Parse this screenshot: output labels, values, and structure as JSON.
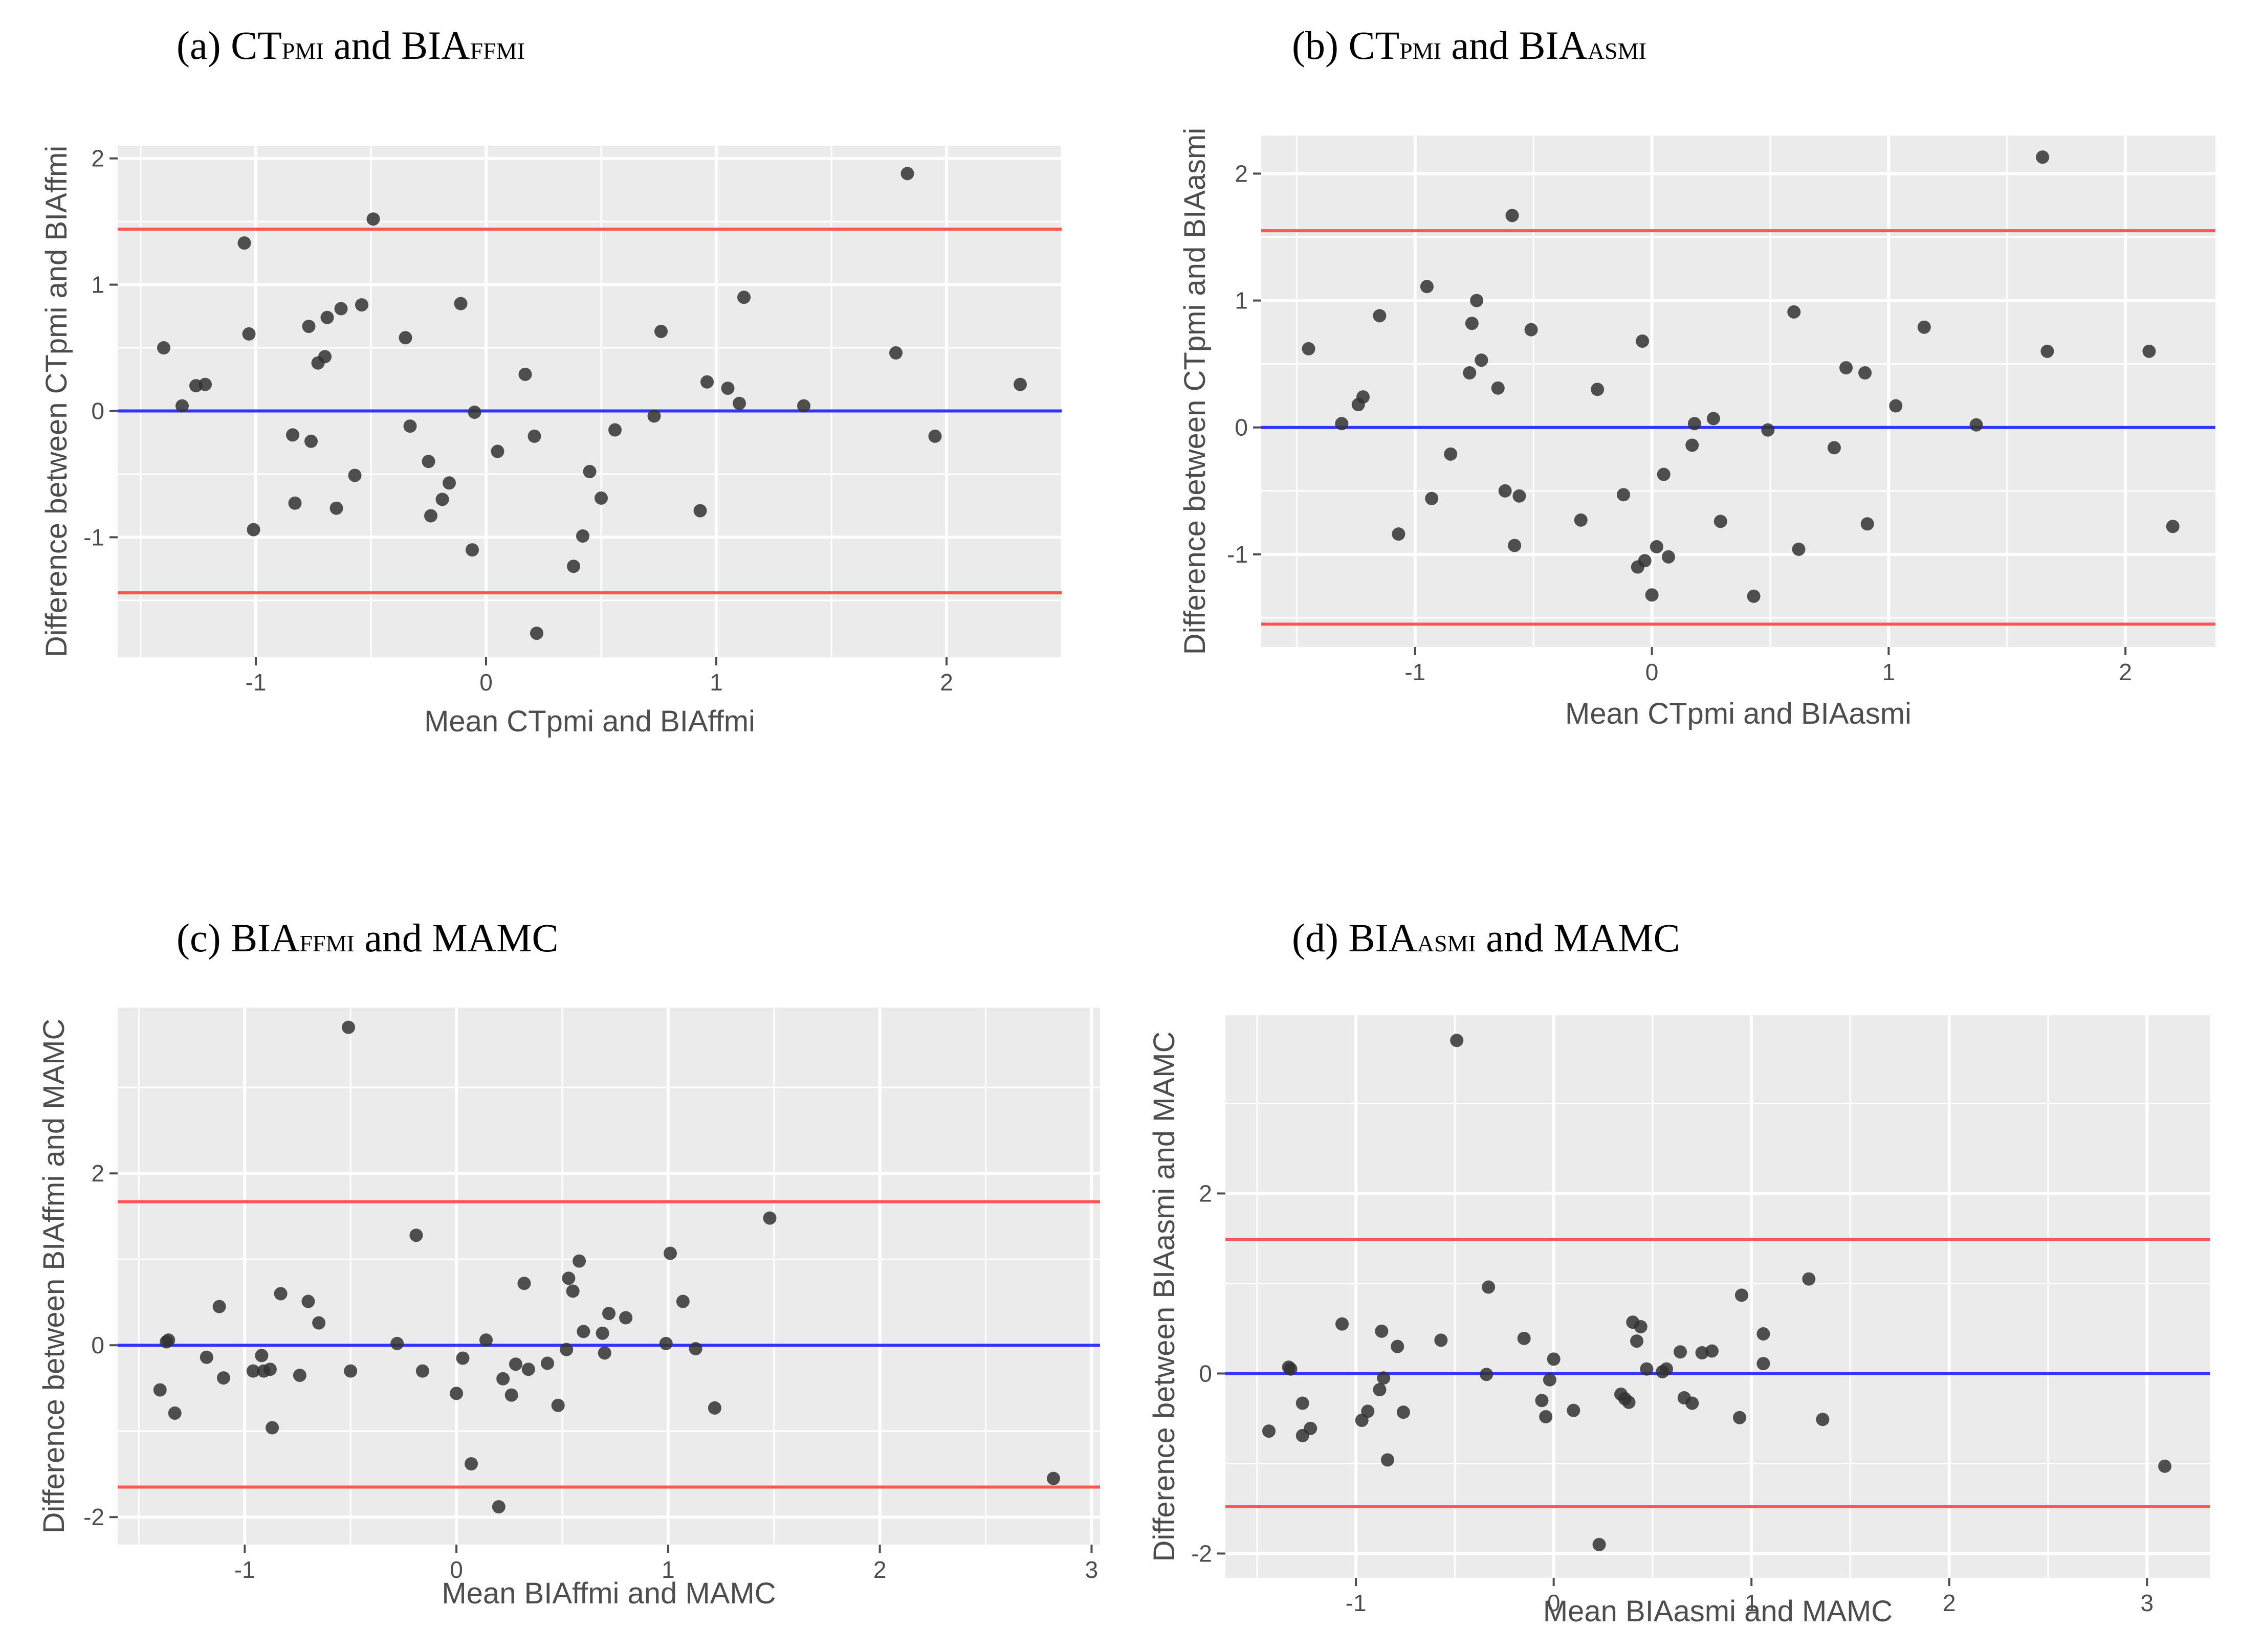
{
  "figure": {
    "panels": [
      {
        "title_prefix": "(a) ",
        "title_parts": [
          [
            "CT",
            false
          ],
          [
            "PMI",
            true
          ],
          [
            " and BIA",
            false
          ],
          [
            "FFMI",
            true
          ]
        ]
      },
      {
        "title_prefix": "(b) ",
        "title_parts": [
          [
            "CT",
            false
          ],
          [
            "PMI",
            true
          ],
          [
            " and BIA",
            false
          ],
          [
            "ASMI",
            true
          ]
        ]
      },
      {
        "title_prefix": "(c) ",
        "title_parts": [
          [
            "BIA",
            false
          ],
          [
            "FFMI",
            true
          ],
          [
            " and MAMC",
            false
          ]
        ]
      },
      {
        "title_prefix": "(d) ",
        "title_parts": [
          [
            "BIA",
            false
          ],
          [
            "ASMI",
            true
          ],
          [
            " and MAMC",
            false
          ]
        ]
      }
    ]
  },
  "colors": {
    "panel_bg": "#ebebeb",
    "grid": "#ffffff",
    "point": "#333333",
    "mean_line": "#3333ff",
    "limit_line": "#ff5555",
    "text": "#4d4d4d",
    "title": "#000000"
  },
  "chart_data": [
    {
      "type": "scatter",
      "title": "(a) CTpmi and BIAffmi",
      "xlabel": "Mean CTpmi and BIAffmi",
      "ylabel": "Difference between CTpmi and BIAffmi",
      "xlim": [
        -1.6,
        2.5
      ],
      "ylim": [
        -1.95,
        2.1
      ],
      "xticks": [
        -1,
        0,
        1,
        2
      ],
      "yticks": [
        -1,
        0,
        1,
        2
      ],
      "mean_diff": 0.0,
      "limits_of_agreement": [
        -1.44,
        1.44
      ],
      "points": [
        [
          -1.4,
          0.5
        ],
        [
          -1.32,
          0.04
        ],
        [
          -1.26,
          0.2
        ],
        [
          -1.22,
          0.21
        ],
        [
          -1.05,
          1.33
        ],
        [
          -1.03,
          0.61
        ],
        [
          -1.01,
          -0.94
        ],
        [
          -0.84,
          -0.19
        ],
        [
          -0.83,
          -0.73
        ],
        [
          -0.77,
          0.67
        ],
        [
          -0.76,
          -0.24
        ],
        [
          -0.73,
          0.38
        ],
        [
          -0.7,
          0.43
        ],
        [
          -0.69,
          0.74
        ],
        [
          -0.65,
          -0.77
        ],
        [
          -0.63,
          0.81
        ],
        [
          -0.57,
          -0.51
        ],
        [
          -0.54,
          0.84
        ],
        [
          -0.49,
          1.52
        ],
        [
          -0.35,
          0.58
        ],
        [
          -0.33,
          -0.12
        ],
        [
          -0.25,
          -0.4
        ],
        [
          -0.24,
          -0.83
        ],
        [
          -0.19,
          -0.7
        ],
        [
          -0.16,
          -0.57
        ],
        [
          -0.11,
          0.85
        ],
        [
          -0.06,
          -1.1
        ],
        [
          -0.05,
          -0.01
        ],
        [
          0.05,
          -0.32
        ],
        [
          0.17,
          0.29
        ],
        [
          0.21,
          -0.2
        ],
        [
          0.22,
          -1.76
        ],
        [
          0.38,
          -1.23
        ],
        [
          0.42,
          -0.99
        ],
        [
          0.45,
          -0.48
        ],
        [
          0.5,
          -0.69
        ],
        [
          0.56,
          -0.15
        ],
        [
          0.73,
          -0.04
        ],
        [
          0.76,
          0.63
        ],
        [
          0.93,
          -0.79
        ],
        [
          0.96,
          0.23
        ],
        [
          1.05,
          0.18
        ],
        [
          1.1,
          0.06
        ],
        [
          1.12,
          0.9
        ],
        [
          1.38,
          0.04
        ],
        [
          1.78,
          0.46
        ],
        [
          1.83,
          1.88
        ],
        [
          1.95,
          -0.2
        ],
        [
          2.32,
          0.21
        ]
      ]
    },
    {
      "type": "scatter",
      "title": "(b) CTpmi and BIAasmi",
      "xlabel": "Mean CTpmi and BIAasmi",
      "ylabel": "Difference between CTpmi and BIAasmi",
      "xlim": [
        -1.65,
        2.38
      ],
      "ylim": [
        -1.73,
        2.3
      ],
      "xticks": [
        -1,
        0,
        1,
        2
      ],
      "yticks": [
        -1,
        0,
        1,
        2
      ],
      "mean_diff": 0.0,
      "limits_of_agreement": [
        -1.55,
        1.55
      ],
      "points": [
        [
          -1.45,
          0.62
        ],
        [
          -1.31,
          0.03
        ],
        [
          -1.24,
          0.18
        ],
        [
          -1.22,
          0.24
        ],
        [
          -1.15,
          0.88
        ],
        [
          -1.07,
          -0.84
        ],
        [
          -0.95,
          1.11
        ],
        [
          -0.93,
          -0.56
        ],
        [
          -0.85,
          -0.21
        ],
        [
          -0.77,
          0.43
        ],
        [
          -0.76,
          0.82
        ],
        [
          -0.74,
          1.0
        ],
        [
          -0.72,
          0.53
        ],
        [
          -0.65,
          0.31
        ],
        [
          -0.62,
          -0.5
        ],
        [
          -0.59,
          1.67
        ],
        [
          -0.58,
          -0.93
        ],
        [
          -0.56,
          -0.54
        ],
        [
          -0.51,
          0.77
        ],
        [
          -0.3,
          -0.73
        ],
        [
          -0.23,
          0.3
        ],
        [
          -0.12,
          -0.53
        ],
        [
          -0.06,
          -1.1
        ],
        [
          -0.03,
          -1.05
        ],
        [
          -0.04,
          0.68
        ],
        [
          0.0,
          -1.32
        ],
        [
          0.02,
          -0.94
        ],
        [
          0.05,
          -0.37
        ],
        [
          0.07,
          -1.02
        ],
        [
          0.17,
          -0.14
        ],
        [
          0.18,
          0.03
        ],
        [
          0.26,
          0.07
        ],
        [
          0.29,
          -0.74
        ],
        [
          0.43,
          -1.33
        ],
        [
          0.49,
          -0.02
        ],
        [
          0.6,
          0.91
        ],
        [
          0.62,
          -0.96
        ],
        [
          0.77,
          -0.16
        ],
        [
          0.82,
          0.47
        ],
        [
          0.9,
          0.43
        ],
        [
          0.91,
          -0.76
        ],
        [
          1.03,
          0.17
        ],
        [
          1.15,
          0.79
        ],
        [
          1.37,
          0.02
        ],
        [
          1.65,
          2.13
        ],
        [
          1.67,
          0.6
        ],
        [
          2.1,
          0.6
        ],
        [
          2.2,
          -0.78
        ]
      ]
    },
    {
      "type": "scatter",
      "title": "(c) BIAffmi and MAMC",
      "xlabel": "Mean BIAffmi and MAMC",
      "ylabel": "Difference between BIAffmi and MAMC",
      "xlim": [
        -1.6,
        3.04
      ],
      "ylim": [
        -2.32,
        3.93
      ],
      "xticks": [
        -1,
        0,
        1,
        2,
        3
      ],
      "yticks": [
        -2,
        0,
        2
      ],
      "mean_diff": 0.0,
      "limits_of_agreement": [
        -1.65,
        1.67
      ],
      "points": [
        [
          -1.4,
          -0.52
        ],
        [
          -1.37,
          0.04
        ],
        [
          -1.36,
          0.06
        ],
        [
          -1.33,
          -0.79
        ],
        [
          -1.18,
          -0.14
        ],
        [
          -1.12,
          0.45
        ],
        [
          -1.1,
          -0.38
        ],
        [
          -0.96,
          -0.3
        ],
        [
          -0.92,
          -0.12
        ],
        [
          -0.91,
          -0.3
        ],
        [
          -0.88,
          -0.28
        ],
        [
          -0.87,
          -0.96
        ],
        [
          -0.83,
          0.6
        ],
        [
          -0.74,
          -0.35
        ],
        [
          -0.7,
          0.51
        ],
        [
          -0.65,
          0.26
        ],
        [
          -0.51,
          3.7
        ],
        [
          -0.5,
          -0.3
        ],
        [
          -0.28,
          0.02
        ],
        [
          -0.19,
          1.28
        ],
        [
          -0.16,
          -0.3
        ],
        [
          0.0,
          -0.56
        ],
        [
          0.03,
          -0.15
        ],
        [
          0.07,
          -1.38
        ],
        [
          0.14,
          0.06
        ],
        [
          0.2,
          -1.88
        ],
        [
          0.22,
          -0.39
        ],
        [
          0.26,
          -0.58
        ],
        [
          0.28,
          -0.22
        ],
        [
          0.32,
          0.72
        ],
        [
          0.34,
          -0.28
        ],
        [
          0.43,
          -0.21
        ],
        [
          0.48,
          -0.7
        ],
        [
          0.52,
          -0.05
        ],
        [
          0.53,
          0.78
        ],
        [
          0.55,
          0.63
        ],
        [
          0.58,
          0.98
        ],
        [
          0.6,
          0.16
        ],
        [
          0.69,
          0.14
        ],
        [
          0.7,
          -0.09
        ],
        [
          0.72,
          0.37
        ],
        [
          0.8,
          0.32
        ],
        [
          0.99,
          0.02
        ],
        [
          1.01,
          1.07
        ],
        [
          1.07,
          0.51
        ],
        [
          1.13,
          -0.04
        ],
        [
          1.22,
          -0.73
        ],
        [
          1.48,
          1.48
        ],
        [
          2.82,
          -1.55
        ]
      ]
    },
    {
      "type": "scatter",
      "title": "(d) BIAasmi and MAMC",
      "xlabel": "Mean BIAasmi and MAMC",
      "ylabel": "Difference between BIAasmi and MAMC",
      "xlim": [
        -1.66,
        3.32
      ],
      "ylim": [
        -2.27,
        3.98
      ],
      "xticks": [
        -1,
        0,
        1,
        2,
        3
      ],
      "yticks": [
        -2,
        0,
        2
      ],
      "mean_diff": 0.0,
      "limits_of_agreement": [
        -1.48,
        1.49
      ],
      "points": [
        [
          -1.44,
          -0.64
        ],
        [
          -1.34,
          0.07
        ],
        [
          -1.33,
          0.05
        ],
        [
          -1.27,
          -0.33
        ],
        [
          -1.27,
          -0.69
        ],
        [
          -1.23,
          -0.61
        ],
        [
          -1.07,
          0.55
        ],
        [
          -0.97,
          -0.52
        ],
        [
          -0.94,
          -0.42
        ],
        [
          -0.88,
          -0.18
        ],
        [
          -0.87,
          0.47
        ],
        [
          -0.86,
          -0.05
        ],
        [
          -0.84,
          -0.96
        ],
        [
          -0.79,
          0.3
        ],
        [
          -0.76,
          -0.43
        ],
        [
          -0.57,
          0.37
        ],
        [
          -0.49,
          3.7
        ],
        [
          -0.34,
          -0.01
        ],
        [
          -0.33,
          0.96
        ],
        [
          -0.15,
          0.39
        ],
        [
          -0.06,
          -0.3
        ],
        [
          -0.04,
          -0.48
        ],
        [
          -0.02,
          -0.07
        ],
        [
          0.0,
          0.16
        ],
        [
          0.1,
          -0.41
        ],
        [
          0.23,
          -1.9
        ],
        [
          0.34,
          -0.23
        ],
        [
          0.36,
          -0.28
        ],
        [
          0.38,
          -0.32
        ],
        [
          0.4,
          0.57
        ],
        [
          0.42,
          0.36
        ],
        [
          0.44,
          0.52
        ],
        [
          0.47,
          0.05
        ],
        [
          0.55,
          0.02
        ],
        [
          0.57,
          0.05
        ],
        [
          0.64,
          0.24
        ],
        [
          0.66,
          -0.27
        ],
        [
          0.7,
          -0.33
        ],
        [
          0.75,
          0.23
        ],
        [
          0.8,
          0.25
        ],
        [
          0.94,
          -0.49
        ],
        [
          0.95,
          0.87
        ],
        [
          1.06,
          0.44
        ],
        [
          1.06,
          0.11
        ],
        [
          1.29,
          1.05
        ],
        [
          1.36,
          -0.51
        ],
        [
          3.09,
          -1.03
        ]
      ]
    }
  ]
}
